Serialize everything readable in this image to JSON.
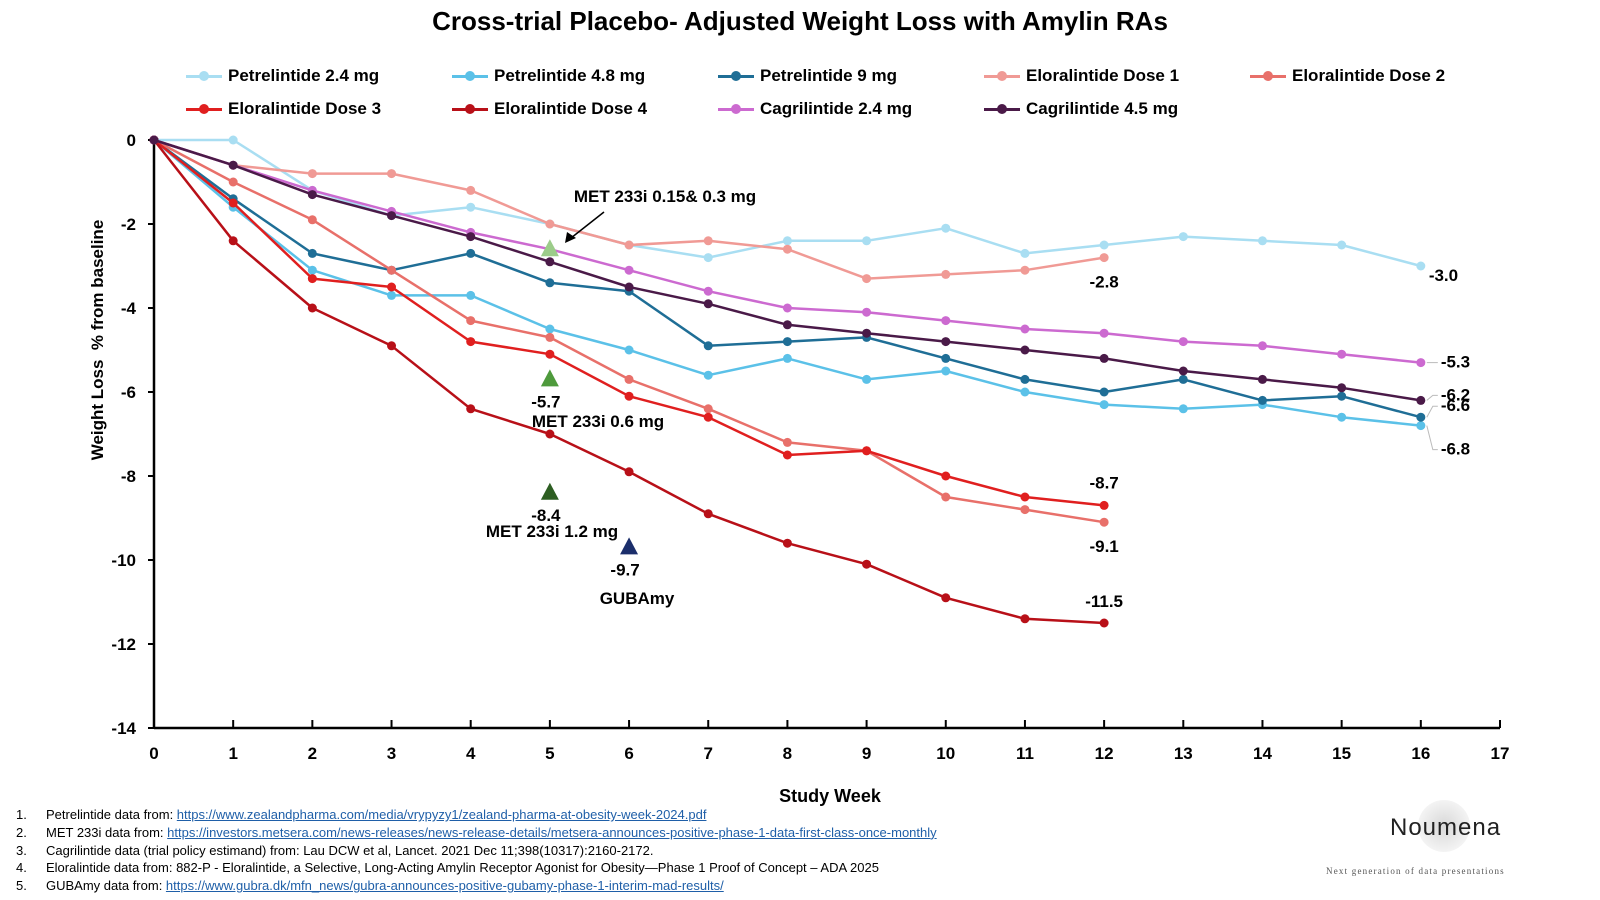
{
  "chart_data": {
    "type": "line",
    "title": "Cross-trial Placebo- Adjusted Weight Loss with Amylin RAs",
    "xlabel": "Study Week",
    "ylabel": "Weight Loss  % from baseline",
    "xlim": [
      0,
      17
    ],
    "ylim": [
      -14,
      0
    ],
    "x_ticks": [
      "0",
      "1",
      "2",
      "3",
      "4",
      "5",
      "6",
      "7",
      "8",
      "9",
      "10",
      "11",
      "12",
      "13",
      "14",
      "15",
      "16",
      "17"
    ],
    "y_ticks": [
      "0",
      "-2",
      "-4",
      "-6",
      "-8",
      "-10",
      "-12",
      "-14"
    ],
    "grid": false,
    "legend_position": "top",
    "series": [
      {
        "name": "Petrelintide 2.4 mg",
        "color": "#a9def2",
        "marker": "circle",
        "x": [
          0,
          1,
          2,
          3,
          4,
          5,
          6,
          7,
          8,
          9,
          10,
          11,
          12,
          13,
          14,
          15,
          16
        ],
        "y": [
          0,
          0,
          -1.2,
          -1.8,
          -1.6,
          -2.0,
          -2.5,
          -2.8,
          -2.4,
          -2.4,
          -2.1,
          -2.7,
          -2.5,
          -2.3,
          -2.4,
          -2.5,
          -3.0
        ],
        "end_label": "-3.0"
      },
      {
        "name": "Petrelintide 4.8 mg",
        "color": "#5bc1e8",
        "marker": "circle",
        "x": [
          0,
          1,
          2,
          3,
          4,
          5,
          6,
          7,
          8,
          9,
          10,
          11,
          12,
          13,
          14,
          15,
          16
        ],
        "y": [
          0,
          -1.6,
          -3.1,
          -3.7,
          -3.7,
          -4.5,
          -5.0,
          -5.6,
          -5.2,
          -5.7,
          -5.5,
          -6.0,
          -6.3,
          -6.4,
          -6.3,
          -6.6,
          -6.8
        ],
        "end_label": "-6.8"
      },
      {
        "name": "Petrelintide 9 mg",
        "color": "#1f6e96",
        "marker": "circle",
        "x": [
          0,
          1,
          2,
          3,
          4,
          5,
          6,
          7,
          8,
          9,
          10,
          11,
          12,
          13,
          14,
          15,
          16
        ],
        "y": [
          0,
          -1.4,
          -2.7,
          -3.1,
          -2.7,
          -3.4,
          -3.6,
          -4.9,
          -4.8,
          -4.7,
          -5.2,
          -5.7,
          -6.0,
          -5.7,
          -6.2,
          -6.1,
          -6.6
        ],
        "end_label": "-6.6"
      },
      {
        "name": "Eloralintide Dose 1",
        "color": "#f09a95",
        "marker": "circle",
        "x": [
          0,
          1,
          2,
          3,
          4,
          5,
          6,
          7,
          8,
          9,
          10,
          11,
          12
        ],
        "y": [
          0,
          -0.6,
          -0.8,
          -0.8,
          -1.2,
          -2.0,
          -2.5,
          -2.4,
          -2.6,
          -3.3,
          -3.2,
          -3.1,
          -2.8
        ],
        "end_label": "-2.8"
      },
      {
        "name": "Eloralintide Dose 2",
        "color": "#e8706a",
        "marker": "circle",
        "x": [
          0,
          1,
          2,
          3,
          4,
          5,
          6,
          7,
          8,
          9,
          10,
          11,
          12
        ],
        "y": [
          0,
          -1.0,
          -1.9,
          -3.1,
          -4.3,
          -4.7,
          -5.7,
          -6.4,
          -7.2,
          -7.4,
          -8.5,
          -8.8,
          -9.1
        ],
        "end_label": "-9.1"
      },
      {
        "name": "Eloralintide Dose 3",
        "color": "#e01f1f",
        "marker": "circle",
        "x": [
          0,
          1,
          2,
          3,
          4,
          5,
          6,
          7,
          8,
          9,
          10,
          11,
          12
        ],
        "y": [
          0,
          -1.5,
          -3.3,
          -3.5,
          -4.8,
          -5.1,
          -6.1,
          -6.6,
          -7.5,
          -7.4,
          -8.0,
          -8.5,
          -8.7
        ],
        "end_label": "-8.7"
      },
      {
        "name": "Eloralintide Dose 4",
        "color": "#b81018",
        "marker": "circle",
        "x": [
          0,
          1,
          2,
          3,
          4,
          5,
          6,
          7,
          8,
          9,
          10,
          11,
          12
        ],
        "y": [
          0,
          -2.4,
          -4.0,
          -4.9,
          -6.4,
          -7.0,
          -7.9,
          -8.9,
          -9.6,
          -10.1,
          -10.9,
          -11.4,
          -11.5
        ],
        "end_label": "-11.5"
      },
      {
        "name": "Cagrilintide 2.4 mg",
        "color": "#cc6ad0",
        "marker": "circle",
        "x": [
          0,
          1,
          2,
          3,
          4,
          5,
          6,
          7,
          8,
          9,
          10,
          11,
          12,
          13,
          14,
          15,
          16
        ],
        "y": [
          0,
          -0.6,
          -1.2,
          -1.7,
          -2.2,
          -2.6,
          -3.1,
          -3.6,
          -4.0,
          -4.1,
          -4.3,
          -4.5,
          -4.6,
          -4.8,
          -4.9,
          -5.1,
          -5.3
        ],
        "end_label": "-5.3"
      },
      {
        "name": "Cagrilintide 4.5 mg",
        "color": "#4a1a48",
        "marker": "circle",
        "x": [
          0,
          1,
          2,
          3,
          4,
          5,
          6,
          7,
          8,
          9,
          10,
          11,
          12,
          13,
          14,
          15,
          16
        ],
        "y": [
          0,
          -0.6,
          -1.3,
          -1.8,
          -2.3,
          -2.9,
          -3.5,
          -3.9,
          -4.4,
          -4.6,
          -4.8,
          -5.0,
          -5.2,
          -5.5,
          -5.7,
          -5.9,
          -6.2
        ],
        "end_label": "-6.2"
      }
    ],
    "point_markers": [
      {
        "x": 5,
        "y": -2.6,
        "shape": "triangle",
        "color": "#9ccc8a",
        "value_label": "",
        "label": ""
      },
      {
        "x": 5,
        "y": -5.7,
        "shape": "triangle",
        "color": "#4e9a3c",
        "value_label": "-5.7",
        "label": "MET 233i 0.6 mg"
      },
      {
        "x": 5,
        "y": -8.4,
        "shape": "triangle",
        "color": "#2d5e22",
        "value_label": "-8.4",
        "label": "MET 233i 1.2 mg"
      },
      {
        "x": 6,
        "y": -9.7,
        "shape": "triangle",
        "color": "#1b2e6b",
        "value_label": "-9.7",
        "label": "GUBAmy"
      }
    ],
    "annotations": [
      {
        "text": "MET 233i 0.15& 0.3 mg",
        "points_to_x": 5,
        "points_to_y": -2.5
      }
    ]
  },
  "footnotes": [
    {
      "num": "1.",
      "text": "Petrelintide data from: ",
      "link": "https://www.zealandpharma.com/media/vrypyzy1/zealand-pharma-at-obesity-week-2024.pdf"
    },
    {
      "num": "2.",
      "text": "MET 233i data from: ",
      "link": "https://investors.metsera.com/news-releases/news-release-details/metsera-announces-positive-phase-1-data-first-class-once-monthly"
    },
    {
      "num": "3.",
      "text": "Cagrilintide data (trial policy estimand) from: Lau DCW et al, Lancet. 2021 Dec 11;398(10317):2160-2172.",
      "link": ""
    },
    {
      "num": "4.",
      "text": "Eloralintide data from: 882-P - Eloralintide, a Selective, Long-Acting Amylin Receptor Agonist for Obesity—Phase 1 Proof of Concept – ADA 2025",
      "link": ""
    },
    {
      "num": "5.",
      "text": "GUBAmy data from: ",
      "link": "https://www.gubra.dk/mfn_news/gubra-announces-positive-gubamy-phase-1-interim-mad-results/"
    }
  ],
  "brand": {
    "name": "Noumena",
    "tagline": "Next generation of data presentations"
  }
}
